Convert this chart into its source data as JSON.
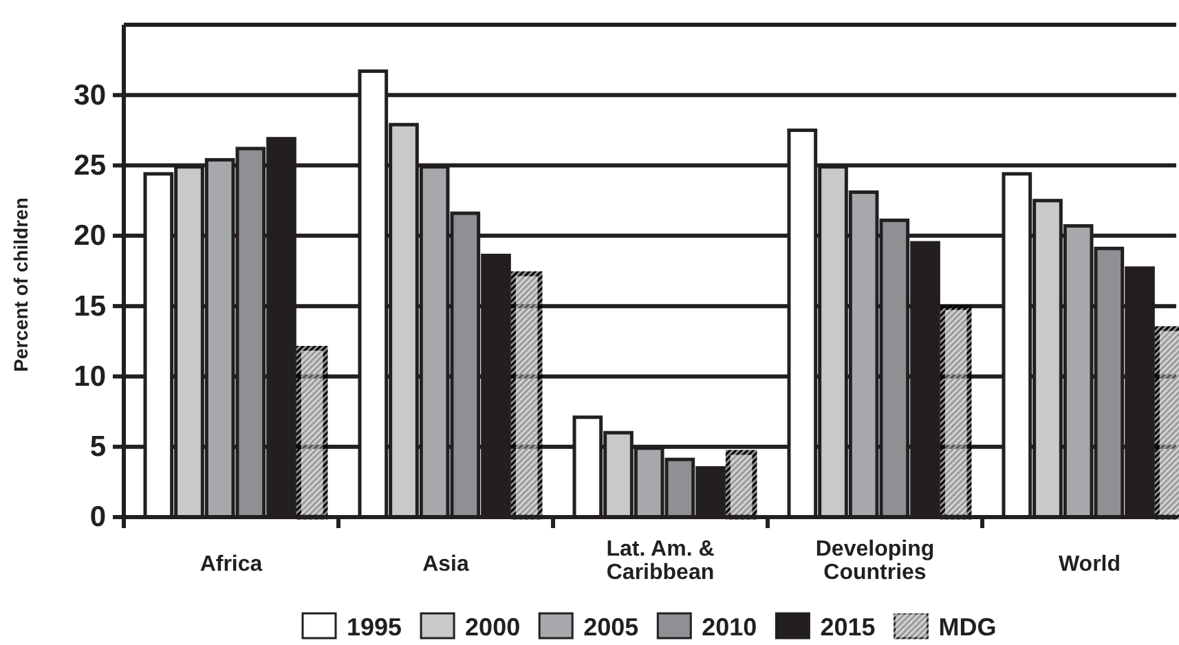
{
  "chart_data": {
    "type": "bar",
    "ylabel": "Percent of children",
    "categories": [
      "Africa",
      "Asia",
      "Lat. Am. &\nCaribbean",
      "Developing\nCountries",
      "World"
    ],
    "series": [
      {
        "name": "1995",
        "color": "#ffffff",
        "values": [
          24.4,
          31.7,
          7.1,
          27.5,
          24.4
        ]
      },
      {
        "name": "2000",
        "color": "#c8c9cb",
        "values": [
          24.9,
          27.9,
          6.0,
          24.9,
          22.5
        ]
      },
      {
        "name": "2005",
        "color": "#a7a8ab",
        "values": [
          25.4,
          24.9,
          4.9,
          23.1,
          20.7
        ]
      },
      {
        "name": "2010",
        "color": "#8f9094",
        "values": [
          26.2,
          21.6,
          4.1,
          21.1,
          19.1
        ]
      },
      {
        "name": "2015",
        "color": "#231f20",
        "values": [
          26.9,
          18.6,
          3.5,
          19.5,
          17.7
        ]
      },
      {
        "name": "MDG",
        "color": "#9a9a9a",
        "values": [
          12.0,
          17.3,
          4.6,
          14.9,
          13.4
        ]
      }
    ],
    "ylim": [
      0,
      35
    ],
    "yticks": [
      0,
      5,
      10,
      15,
      20,
      25,
      30
    ],
    "grid": "y",
    "legend": "bottom"
  }
}
